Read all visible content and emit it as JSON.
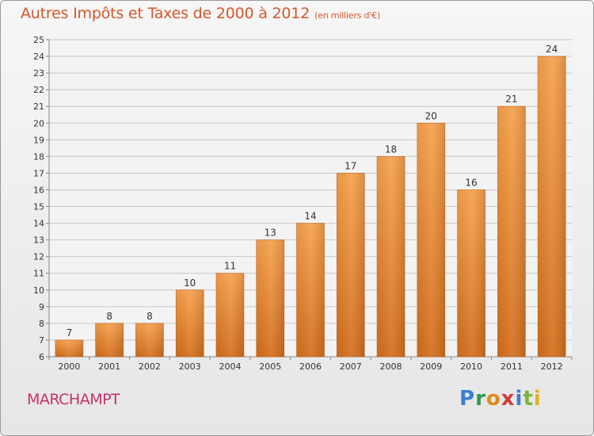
{
  "chart_data": {
    "type": "bar",
    "title": "Autres Impôts et Taxes de 2000 à 2012",
    "subtitle": "(en milliers d'€)",
    "categories": [
      "2000",
      "2001",
      "2002",
      "2003",
      "2004",
      "2005",
      "2006",
      "2007",
      "2008",
      "2009",
      "2010",
      "2011",
      "2012"
    ],
    "values": [
      7,
      8,
      8,
      10,
      11,
      13,
      14,
      17,
      18,
      20,
      16,
      21,
      24
    ],
    "ylim": [
      6,
      25
    ],
    "yticks": [
      6,
      7,
      8,
      9,
      10,
      11,
      12,
      13,
      14,
      15,
      16,
      17,
      18,
      19,
      20,
      21,
      22,
      23,
      24,
      25
    ],
    "grid": true,
    "bar_color": "#f0913c",
    "bar_color_dark": "#d06a18"
  },
  "footer": {
    "commune": "MARCHAMPT",
    "logo": [
      "P",
      "r",
      "o",
      "x",
      "i",
      "t",
      "i"
    ]
  }
}
